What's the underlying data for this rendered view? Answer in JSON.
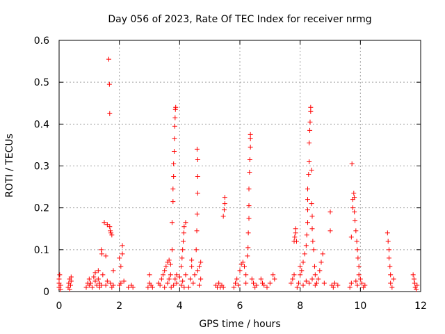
{
  "chart_data": {
    "type": "scatter",
    "title": "Day 056 of 2023, Rate Of TEC Index for receiver nrmg",
    "xlabel": "GPS time / hours",
    "ylabel": "ROTI / TECUs",
    "xlim": [
      0,
      12
    ],
    "ylim": [
      0,
      0.6
    ],
    "x_ticks": [
      "0",
      "2",
      "4",
      "6",
      "8",
      "10",
      "12"
    ],
    "y_ticks": [
      "0",
      "0.1",
      "0.2",
      "0.3",
      "0.4",
      "0.5",
      "0.6"
    ],
    "grid": true,
    "legend": "none",
    "marker": "plus",
    "colors": {
      "series": "#ff0000",
      "grid": "#a0a0a0",
      "axes": "#000000"
    },
    "series": [
      {
        "points": [
          [
            0.0,
            0.01
          ],
          [
            0.0,
            0.02
          ],
          [
            0.0,
            0.03
          ],
          [
            0.02,
            0.04
          ],
          [
            0.05,
            0.015
          ],
          [
            0.05,
            0.005
          ],
          [
            0.3,
            0.01
          ],
          [
            0.32,
            0.02
          ],
          [
            0.35,
            0.03
          ],
          [
            0.35,
            0.005
          ],
          [
            0.38,
            0.015
          ],
          [
            0.4,
            0.025
          ],
          [
            0.4,
            0.035
          ],
          [
            0.9,
            0.01
          ],
          [
            0.95,
            0.02
          ],
          [
            1.0,
            0.015
          ],
          [
            1.0,
            0.03
          ],
          [
            1.05,
            0.02
          ],
          [
            1.1,
            0.01
          ],
          [
            1.15,
            0.035
          ],
          [
            1.2,
            0.025
          ],
          [
            1.2,
            0.045
          ],
          [
            1.25,
            0.015
          ],
          [
            1.3,
            0.05
          ],
          [
            1.3,
            0.03
          ],
          [
            1.35,
            0.02
          ],
          [
            1.35,
            0.01
          ],
          [
            1.4,
            0.1
          ],
          [
            1.42,
            0.09
          ],
          [
            1.4,
            0.015
          ],
          [
            1.45,
            0.04
          ],
          [
            1.5,
            0.165
          ],
          [
            1.55,
            0.085
          ],
          [
            1.55,
            0.015
          ],
          [
            1.6,
            0.025
          ],
          [
            1.6,
            0.16
          ],
          [
            1.65,
            0.555
          ],
          [
            1.67,
            0.495
          ],
          [
            1.68,
            0.425
          ],
          [
            1.68,
            0.155
          ],
          [
            1.7,
            0.145
          ],
          [
            1.72,
            0.14
          ],
          [
            1.75,
            0.135
          ],
          [
            1.7,
            0.02
          ],
          [
            1.75,
            0.01
          ],
          [
            1.8,
            0.05
          ],
          [
            1.8,
            0.015
          ],
          [
            2.0,
            0.08
          ],
          [
            2.05,
            0.06
          ],
          [
            2.1,
            0.11
          ],
          [
            2.1,
            0.09
          ],
          [
            2.15,
            0.025
          ],
          [
            2.05,
            0.02
          ],
          [
            2.0,
            0.015
          ],
          [
            2.3,
            0.01
          ],
          [
            2.4,
            0.015
          ],
          [
            2.45,
            0.01
          ],
          [
            2.95,
            0.01
          ],
          [
            3.0,
            0.02
          ],
          [
            3.0,
            0.04
          ],
          [
            3.05,
            0.015
          ],
          [
            3.1,
            0.01
          ],
          [
            3.3,
            0.02
          ],
          [
            3.35,
            0.015
          ],
          [
            3.4,
            0.03
          ],
          [
            3.45,
            0.04
          ],
          [
            3.5,
            0.05
          ],
          [
            3.55,
            0.06
          ],
          [
            3.6,
            0.07
          ],
          [
            3.65,
            0.075
          ],
          [
            3.7,
            0.065
          ],
          [
            3.5,
            0.01
          ],
          [
            3.6,
            0.02
          ],
          [
            3.65,
            0.03
          ],
          [
            3.7,
            0.04
          ],
          [
            3.72,
            0.01
          ],
          [
            3.75,
            0.1
          ],
          [
            3.75,
            0.165
          ],
          [
            3.78,
            0.215
          ],
          [
            3.78,
            0.245
          ],
          [
            3.8,
            0.275
          ],
          [
            3.8,
            0.305
          ],
          [
            3.82,
            0.335
          ],
          [
            3.83,
            0.365
          ],
          [
            3.84,
            0.395
          ],
          [
            3.85,
            0.415
          ],
          [
            3.86,
            0.435
          ],
          [
            3.87,
            0.44
          ],
          [
            3.8,
            0.015
          ],
          [
            3.85,
            0.03
          ],
          [
            3.9,
            0.04
          ],
          [
            3.9,
            0.02
          ],
          [
            4.0,
            0.035
          ],
          [
            4.05,
            0.06
          ],
          [
            4.08,
            0.08
          ],
          [
            4.1,
            0.1
          ],
          [
            4.12,
            0.12
          ],
          [
            4.14,
            0.14
          ],
          [
            4.15,
            0.155
          ],
          [
            4.2,
            0.165
          ],
          [
            4.05,
            0.015
          ],
          [
            4.1,
            0.025
          ],
          [
            4.15,
            0.01
          ],
          [
            4.2,
            0.04
          ],
          [
            4.3,
            0.01
          ],
          [
            4.35,
            0.03
          ],
          [
            4.4,
            0.06
          ],
          [
            4.4,
            0.075
          ],
          [
            4.45,
            0.02
          ],
          [
            4.5,
            0.04
          ],
          [
            4.55,
            0.1
          ],
          [
            4.57,
            0.145
          ],
          [
            4.58,
            0.185
          ],
          [
            4.6,
            0.235
          ],
          [
            4.6,
            0.275
          ],
          [
            4.6,
            0.315
          ],
          [
            4.58,
            0.34
          ],
          [
            4.6,
            0.05
          ],
          [
            4.65,
            0.06
          ],
          [
            4.7,
            0.07
          ],
          [
            4.7,
            0.03
          ],
          [
            4.65,
            0.015
          ],
          [
            5.2,
            0.015
          ],
          [
            5.25,
            0.01
          ],
          [
            5.3,
            0.02
          ],
          [
            5.35,
            0.01
          ],
          [
            5.4,
            0.015
          ],
          [
            5.45,
            0.01
          ],
          [
            5.45,
            0.18
          ],
          [
            5.48,
            0.195
          ],
          [
            5.5,
            0.21
          ],
          [
            5.5,
            0.225
          ],
          [
            5.8,
            0.01
          ],
          [
            5.85,
            0.02
          ],
          [
            5.9,
            0.03
          ],
          [
            5.95,
            0.015
          ],
          [
            6.0,
            0.05
          ],
          [
            6.05,
            0.065
          ],
          [
            6.1,
            0.07
          ],
          [
            6.15,
            0.06
          ],
          [
            6.2,
            0.04
          ],
          [
            6.2,
            0.02
          ],
          [
            6.25,
            0.085
          ],
          [
            6.27,
            0.105
          ],
          [
            6.28,
            0.14
          ],
          [
            6.3,
            0.175
          ],
          [
            6.3,
            0.205
          ],
          [
            6.3,
            0.245
          ],
          [
            6.32,
            0.285
          ],
          [
            6.33,
            0.315
          ],
          [
            6.35,
            0.345
          ],
          [
            6.35,
            0.365
          ],
          [
            6.35,
            0.375
          ],
          [
            6.4,
            0.03
          ],
          [
            6.45,
            0.02
          ],
          [
            6.5,
            0.01
          ],
          [
            6.55,
            0.015
          ],
          [
            6.7,
            0.03
          ],
          [
            6.75,
            0.02
          ],
          [
            6.8,
            0.015
          ],
          [
            6.9,
            0.01
          ],
          [
            7.0,
            0.02
          ],
          [
            7.1,
            0.04
          ],
          [
            7.15,
            0.03
          ],
          [
            7.7,
            0.02
          ],
          [
            7.75,
            0.03
          ],
          [
            7.8,
            0.04
          ],
          [
            7.8,
            0.12
          ],
          [
            7.82,
            0.13
          ],
          [
            7.85,
            0.15
          ],
          [
            7.85,
            0.14
          ],
          [
            7.88,
            0.12
          ],
          [
            7.9,
            0.01
          ],
          [
            7.95,
            0.02
          ],
          [
            8.0,
            0.04
          ],
          [
            8.0,
            0.06
          ],
          [
            8.05,
            0.05
          ],
          [
            8.1,
            0.07
          ],
          [
            8.15,
            0.09
          ],
          [
            8.2,
            0.11
          ],
          [
            8.22,
            0.135
          ],
          [
            8.25,
            0.165
          ],
          [
            8.25,
            0.195
          ],
          [
            8.25,
            0.22
          ],
          [
            8.25,
            0.245
          ],
          [
            8.28,
            0.28
          ],
          [
            8.3,
            0.31
          ],
          [
            8.3,
            0.355
          ],
          [
            8.32,
            0.385
          ],
          [
            8.33,
            0.405
          ],
          [
            8.35,
            0.43
          ],
          [
            8.35,
            0.44
          ],
          [
            8.38,
            0.29
          ],
          [
            8.38,
            0.21
          ],
          [
            8.4,
            0.18
          ],
          [
            8.4,
            0.15
          ],
          [
            8.42,
            0.12
          ],
          [
            8.45,
            0.1
          ],
          [
            8.48,
            0.06
          ],
          [
            8.5,
            0.04
          ],
          [
            8.55,
            0.02
          ],
          [
            8.1,
            0.015
          ],
          [
            8.2,
            0.025
          ],
          [
            8.3,
            0.02
          ],
          [
            8.4,
            0.03
          ],
          [
            8.5,
            0.015
          ],
          [
            8.6,
            0.03
          ],
          [
            8.65,
            0.05
          ],
          [
            8.7,
            0.07
          ],
          [
            8.75,
            0.09
          ],
          [
            8.8,
            0.02
          ],
          [
            9.0,
            0.19
          ],
          [
            9.0,
            0.145
          ],
          [
            9.05,
            0.015
          ],
          [
            9.1,
            0.01
          ],
          [
            9.15,
            0.02
          ],
          [
            9.25,
            0.015
          ],
          [
            9.65,
            0.01
          ],
          [
            9.7,
            0.02
          ],
          [
            9.7,
            0.13
          ],
          [
            9.72,
            0.305
          ],
          [
            9.75,
            0.22
          ],
          [
            9.75,
            0.2
          ],
          [
            9.78,
            0.235
          ],
          [
            9.8,
            0.225
          ],
          [
            9.8,
            0.19
          ],
          [
            9.82,
            0.17
          ],
          [
            9.85,
            0.145
          ],
          [
            9.88,
            0.12
          ],
          [
            9.9,
            0.1
          ],
          [
            9.92,
            0.08
          ],
          [
            9.95,
            0.06
          ],
          [
            9.95,
            0.04
          ],
          [
            10.0,
            0.03
          ],
          [
            10.05,
            0.02
          ],
          [
            10.1,
            0.01
          ],
          [
            10.15,
            0.015
          ],
          [
            9.9,
            0.015
          ],
          [
            9.85,
            0.025
          ],
          [
            10.9,
            0.14
          ],
          [
            10.92,
            0.12
          ],
          [
            10.95,
            0.1
          ],
          [
            10.95,
            0.08
          ],
          [
            10.98,
            0.06
          ],
          [
            11.0,
            0.04
          ],
          [
            11.0,
            0.02
          ],
          [
            11.05,
            0.01
          ],
          [
            11.1,
            0.03
          ],
          [
            11.75,
            0.04
          ],
          [
            11.78,
            0.03
          ],
          [
            11.8,
            0.02
          ],
          [
            11.82,
            0.01
          ],
          [
            11.85,
            0.005
          ],
          [
            11.88,
            0.015
          ]
        ]
      }
    ]
  }
}
